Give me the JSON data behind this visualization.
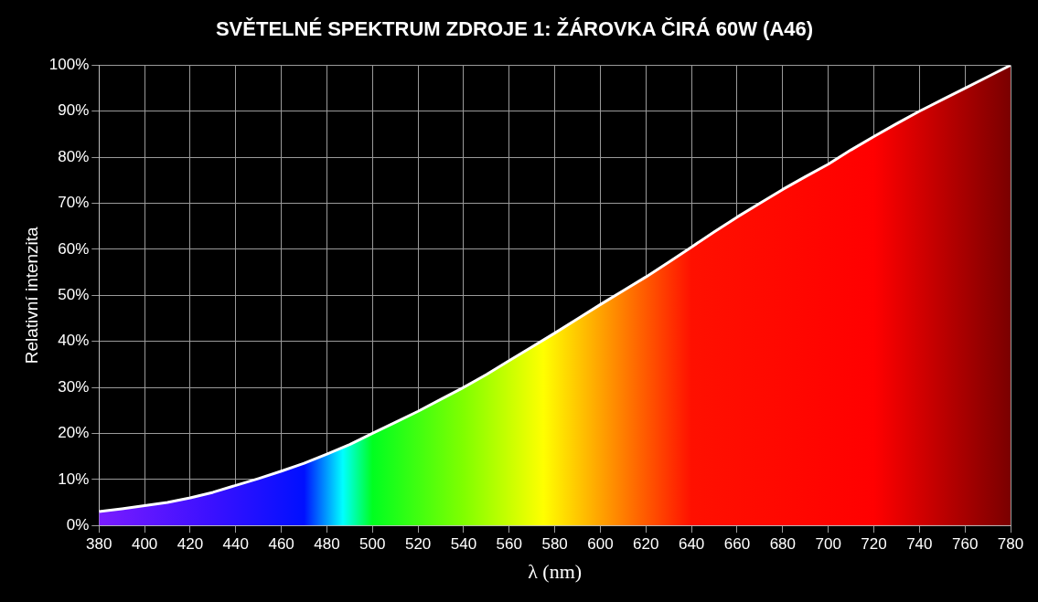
{
  "chart_data": {
    "type": "area",
    "title": "SVĚTELNÉ SPEKTRUM ZDROJE 1: ŽÁROVKA ČIRÁ 60W (A46)",
    "xlabel": "λ (nm)",
    "ylabel": "Relativní intenzita",
    "x": [
      380,
      390,
      400,
      410,
      420,
      430,
      440,
      450,
      460,
      470,
      480,
      490,
      500,
      510,
      520,
      530,
      540,
      550,
      560,
      570,
      580,
      590,
      600,
      610,
      620,
      630,
      640,
      650,
      660,
      670,
      680,
      690,
      700,
      710,
      720,
      730,
      740,
      750,
      760,
      770,
      780
    ],
    "series": [
      {
        "color": "#ffffff",
        "values": [
          3,
          3.6,
          4.3,
          5,
          6,
          7.2,
          8.7,
          10.2,
          11.8,
          13.5,
          15.5,
          17.6,
          20,
          22.4,
          24.8,
          27.4,
          30,
          32.8,
          35.8,
          38.8,
          41.8,
          44.9,
          48,
          51,
          54,
          57.2,
          60.5,
          63.8,
          67,
          70,
          73,
          75.8,
          78.5,
          81.6,
          84.5,
          87.3,
          90,
          92.5,
          95,
          97.5,
          100
        ]
      }
    ],
    "xlim": [
      380,
      780
    ],
    "xticks": [
      380,
      400,
      420,
      440,
      460,
      480,
      500,
      520,
      540,
      560,
      580,
      600,
      620,
      640,
      660,
      680,
      700,
      720,
      740,
      760,
      780
    ],
    "ylim": [
      0,
      100
    ],
    "yticks": [
      {
        "value": 0,
        "label": "0%"
      },
      {
        "value": 10,
        "label": "10%"
      },
      {
        "value": 20,
        "label": "20%"
      },
      {
        "value": 30,
        "label": "30%"
      },
      {
        "value": 40,
        "label": "40%"
      },
      {
        "value": 50,
        "label": "50%"
      },
      {
        "value": 60,
        "label": "60%"
      },
      {
        "value": 70,
        "label": "70%"
      },
      {
        "value": 80,
        "label": "80%"
      },
      {
        "value": 90,
        "label": "90%"
      },
      {
        "value": 100,
        "label": "100%"
      }
    ],
    "grid": true,
    "legend": false,
    "marker": "none",
    "line_style": "solid"
  }
}
